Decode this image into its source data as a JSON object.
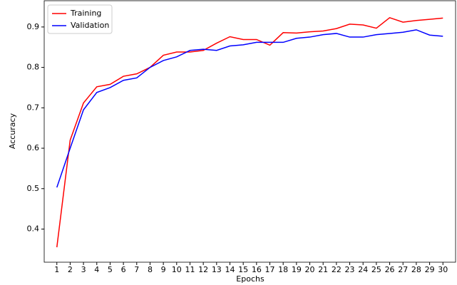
{
  "chart_data": {
    "type": "line",
    "x_label": "Epochs",
    "y_label": "Accuracy",
    "x": [
      1,
      2,
      3,
      4,
      5,
      6,
      7,
      8,
      9,
      10,
      11,
      12,
      13,
      14,
      15,
      16,
      17,
      18,
      19,
      20,
      21,
      22,
      23,
      24,
      25,
      26,
      27,
      28,
      29,
      30
    ],
    "series": [
      {
        "name": "Training",
        "color": "#ff0000",
        "values": [
          0.355,
          0.62,
          0.712,
          0.752,
          0.758,
          0.778,
          0.784,
          0.8,
          0.83,
          0.838,
          0.838,
          0.842,
          0.86,
          0.876,
          0.869,
          0.869,
          0.855,
          0.886,
          0.885,
          0.888,
          0.89,
          0.896,
          0.907,
          0.905,
          0.897,
          0.923,
          0.912,
          0.916,
          0.919,
          0.922
        ]
      },
      {
        "name": "Validation",
        "color": "#0000ff",
        "values": [
          0.503,
          0.6,
          0.695,
          0.738,
          0.75,
          0.768,
          0.774,
          0.8,
          0.817,
          0.826,
          0.842,
          0.845,
          0.842,
          0.853,
          0.856,
          0.862,
          0.862,
          0.862,
          0.872,
          0.875,
          0.881,
          0.884,
          0.875,
          0.875,
          0.881,
          0.884,
          0.887,
          0.893,
          0.88,
          0.877
        ]
      }
    ],
    "xlim": [
      0.05,
      30.95
    ],
    "ylim": [
      0.318,
      0.965
    ],
    "xticks": [
      1,
      2,
      3,
      4,
      5,
      6,
      7,
      8,
      9,
      10,
      11,
      12,
      13,
      14,
      15,
      16,
      17,
      18,
      19,
      20,
      21,
      22,
      23,
      24,
      25,
      26,
      27,
      28,
      29,
      30
    ],
    "yticks": [
      0.4,
      0.5,
      0.6,
      0.7,
      0.8,
      0.9
    ],
    "grid": false,
    "legend": "upper left"
  }
}
